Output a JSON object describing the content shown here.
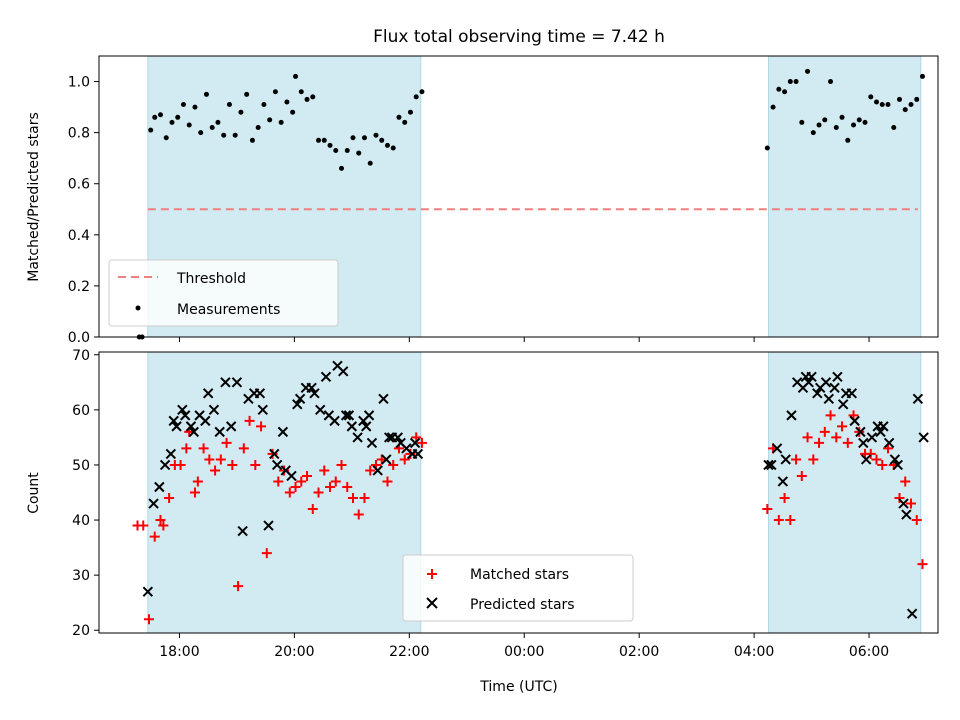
{
  "chart_data": {
    "title": "Flux total observing time = 7.42 h",
    "xlabel": "Time (UTC)",
    "x_range_hours": [
      16.6,
      31.2
    ],
    "x_ticks": [
      {
        "value": 18,
        "label": "18:00"
      },
      {
        "value": 20,
        "label": "20:00"
      },
      {
        "value": 22,
        "label": "22:00"
      },
      {
        "value": 24,
        "label": "00:00"
      },
      {
        "value": 26,
        "label": "02:00"
      },
      {
        "value": 28,
        "label": "04:00"
      },
      {
        "value": 30,
        "label": "06:00"
      }
    ],
    "shaded_intervals_hours": [
      [
        17.45,
        22.2
      ],
      [
        28.25,
        30.9
      ]
    ],
    "colors": {
      "shade": "#add8e6",
      "threshold": "#f08080",
      "matched": "#ff0000",
      "predicted": "#000000",
      "measurements": "#000000"
    },
    "top": {
      "type": "scatter",
      "ylabel": "Matched/Predicted stars",
      "ylim": [
        0.0,
        1.1
      ],
      "y_ticks": [
        0.0,
        0.2,
        0.4,
        0.6,
        0.8,
        1.0
      ],
      "threshold": {
        "name": "Threshold",
        "value": 0.5,
        "x": [
          17.45,
          30.85
        ]
      },
      "legend": {
        "position": "lower-left",
        "entries": [
          "Threshold",
          "Measurements"
        ]
      },
      "measurements": {
        "name": "Measurements",
        "x": [
          17.3,
          17.35,
          17.5,
          17.57,
          17.67,
          17.77,
          17.87,
          17.97,
          18.07,
          18.17,
          18.27,
          18.37,
          18.47,
          18.57,
          18.67,
          18.77,
          18.87,
          18.97,
          19.07,
          19.17,
          19.27,
          19.37,
          19.47,
          19.57,
          19.67,
          19.77,
          19.87,
          19.97,
          20.02,
          20.12,
          20.22,
          20.32,
          20.42,
          20.52,
          20.62,
          20.72,
          20.82,
          20.92,
          21.02,
          21.12,
          21.22,
          21.32,
          21.42,
          21.52,
          21.62,
          21.72,
          21.82,
          21.92,
          22.02,
          22.12,
          22.22,
          28.23,
          28.33,
          28.43,
          28.53,
          28.63,
          28.73,
          28.83,
          28.93,
          29.03,
          29.13,
          29.23,
          29.33,
          29.43,
          29.53,
          29.63,
          29.73,
          29.83,
          29.93,
          30.03,
          30.13,
          30.23,
          30.33,
          30.43,
          30.53,
          30.63,
          30.73,
          30.83,
          30.93
        ],
        "y": [
          0.0,
          0.0,
          0.81,
          0.86,
          0.87,
          0.78,
          0.84,
          0.86,
          0.91,
          0.83,
          0.9,
          0.8,
          0.95,
          0.82,
          0.84,
          0.79,
          0.91,
          0.79,
          0.88,
          0.95,
          0.77,
          0.82,
          0.91,
          0.85,
          0.96,
          0.84,
          0.92,
          0.88,
          1.02,
          0.96,
          0.93,
          0.94,
          0.77,
          0.77,
          0.75,
          0.73,
          0.66,
          0.73,
          0.78,
          0.72,
          0.78,
          0.68,
          0.79,
          0.77,
          0.75,
          0.74,
          0.86,
          0.84,
          0.88,
          0.94,
          0.96,
          0.74,
          0.9,
          0.97,
          0.96,
          1.0,
          1.0,
          0.84,
          1.04,
          0.8,
          0.83,
          0.85,
          1.0,
          0.82,
          0.86,
          0.77,
          0.83,
          0.85,
          0.84,
          0.94,
          0.92,
          0.91,
          0.91,
          0.82,
          0.93,
          0.89,
          0.91,
          0.93,
          1.02
        ]
      }
    },
    "bottom": {
      "type": "scatter",
      "ylabel": "Count",
      "ylim": [
        19.5,
        70.5
      ],
      "y_ticks": [
        20,
        30,
        40,
        50,
        60,
        70
      ],
      "legend": {
        "position": "lower-center",
        "entries": [
          "Matched stars",
          "Predicted stars"
        ]
      },
      "series": [
        {
          "name": "Matched stars",
          "marker": "+",
          "x": [
            17.27,
            17.37,
            17.47,
            17.57,
            17.67,
            17.72,
            17.82,
            17.92,
            18.02,
            18.12,
            18.17,
            18.27,
            18.32,
            18.42,
            18.52,
            18.62,
            18.72,
            18.82,
            18.92,
            19.02,
            19.12,
            19.22,
            19.32,
            19.42,
            19.52,
            19.62,
            19.72,
            19.82,
            19.92,
            20.02,
            20.12,
            20.22,
            20.32,
            20.42,
            20.52,
            20.62,
            20.72,
            20.82,
            20.92,
            21.02,
            21.12,
            21.22,
            21.32,
            21.42,
            21.52,
            21.62,
            21.72,
            21.82,
            21.92,
            22.02,
            22.12,
            22.22,
            28.23,
            28.33,
            28.43,
            28.53,
            28.63,
            28.73,
            28.83,
            28.93,
            29.03,
            29.13,
            29.23,
            29.33,
            29.43,
            29.53,
            29.63,
            29.73,
            29.83,
            29.93,
            30.03,
            30.13,
            30.23,
            30.33,
            30.43,
            30.53,
            30.63,
            30.73,
            30.83,
            30.93
          ],
          "y": [
            39,
            39,
            22,
            37,
            40,
            39,
            44,
            50,
            50,
            53,
            56,
            45,
            47,
            53,
            51,
            49,
            51,
            54,
            50,
            28,
            53,
            58,
            50,
            57,
            34,
            52,
            47,
            49,
            45,
            46,
            47,
            48,
            42,
            45,
            49,
            46,
            47,
            50,
            46,
            44,
            41,
            44,
            49,
            50,
            51,
            47,
            50,
            53,
            51,
            52,
            55,
            54,
            42,
            53,
            40,
            44,
            40,
            51,
            48,
            55,
            51,
            54,
            56,
            59,
            55,
            57,
            54,
            59,
            56,
            52,
            52,
            51,
            50,
            53,
            50,
            44,
            47,
            43,
            40,
            32
          ]
        },
        {
          "name": "Predicted stars",
          "marker": "x",
          "x": [
            17.45,
            17.55,
            17.65,
            17.75,
            17.85,
            17.9,
            17.95,
            18.05,
            18.1,
            18.2,
            18.25,
            18.35,
            18.45,
            18.5,
            18.6,
            18.7,
            18.8,
            18.9,
            19.0,
            19.1,
            19.2,
            19.3,
            19.4,
            19.45,
            19.55,
            19.65,
            19.7,
            19.8,
            19.85,
            19.95,
            20.05,
            20.1,
            20.2,
            20.3,
            20.35,
            20.45,
            20.55,
            20.6,
            20.7,
            20.75,
            20.85,
            20.9,
            20.95,
            21.0,
            21.1,
            21.2,
            21.25,
            21.3,
            21.35,
            21.45,
            21.55,
            21.6,
            21.65,
            21.7,
            21.8,
            21.85,
            21.95,
            22.05,
            22.1,
            22.15,
            28.25,
            28.3,
            28.4,
            28.5,
            28.55,
            28.65,
            28.75,
            28.85,
            28.9,
            28.95,
            29.0,
            29.1,
            29.15,
            29.25,
            29.3,
            29.4,
            29.45,
            29.55,
            29.6,
            29.7,
            29.75,
            29.85,
            29.9,
            29.95,
            30.05,
            30.15,
            30.2,
            30.25,
            30.35,
            30.45,
            30.5,
            30.6,
            30.65,
            30.75,
            30.85,
            30.95
          ],
          "y": [
            27,
            43,
            46,
            50,
            52,
            58,
            57,
            60,
            59,
            57,
            56,
            59,
            58,
            63,
            60,
            56,
            65,
            57,
            65,
            38,
            62,
            63,
            63,
            60,
            39,
            52,
            50,
            56,
            49,
            48,
            61,
            62,
            64,
            64,
            63,
            60,
            66,
            59,
            58,
            68,
            67,
            59,
            59,
            57,
            55,
            58,
            57,
            59,
            54,
            49,
            62,
            51,
            55,
            55,
            55,
            54,
            53,
            52,
            54,
            52,
            50,
            50,
            53,
            47,
            51,
            59,
            65,
            64,
            66,
            65,
            66,
            63,
            64,
            65,
            62,
            64,
            66,
            61,
            63,
            63,
            58,
            56,
            54,
            51,
            55,
            57,
            56,
            57,
            54,
            51,
            50,
            43,
            41,
            23,
            62,
            55
          ]
        }
      ]
    }
  }
}
